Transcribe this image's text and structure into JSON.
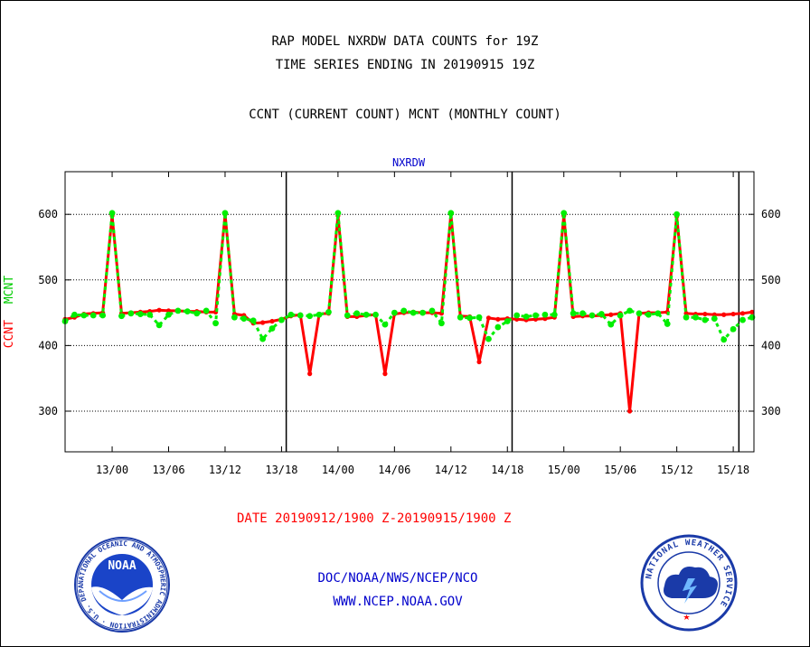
{
  "header": {
    "title_line1": "RAP MODEL NXRDW DATA COUNTS for 19Z",
    "title_line2": "TIME SERIES ENDING IN 20190915 19Z",
    "subtitle": "CCNT (CURRENT COUNT) MCNT (MONTHLY COUNT)"
  },
  "footer": {
    "date_range": "DATE 20190912/1900 Z-20190915/1900 Z",
    "org": "DOC/NOAA/NWS/NCEP/NCO",
    "url": "WWW.NCEP.NOAA.GOV"
  },
  "logos": {
    "left": {
      "icon": "noaa-logo",
      "label": "NOAA",
      "ring_text": "NATIONAL OCEANIC AND ATMOSPHERIC ADMINISTRATION · U.S. DEPARTMENT OF COMMERCE"
    },
    "right": {
      "icon": "nws-logo",
      "ring_text": "NATIONAL WEATHER SERVICE"
    }
  },
  "chart_data": {
    "type": "line",
    "title": "NXRDW",
    "ylabel_left": "CCNT",
    "ylabel_right": "MCNT",
    "ylim": [
      238,
      665
    ],
    "yticks": [
      300,
      400,
      500,
      600
    ],
    "xlim": [
      -5.0,
      68.2
    ],
    "x_unit": "hours since 20190912/1900 Z",
    "xticks": [
      {
        "x": 0,
        "label": "13/00"
      },
      {
        "x": 6,
        "label": "13/06"
      },
      {
        "x": 12,
        "label": "13/12"
      },
      {
        "x": 18,
        "label": "13/18"
      },
      {
        "x": 24,
        "label": "14/00"
      },
      {
        "x": 30,
        "label": "14/06"
      },
      {
        "x": 36,
        "label": "14/12"
      },
      {
        "x": 42,
        "label": "14/18"
      },
      {
        "x": 48,
        "label": "15/00"
      },
      {
        "x": 54,
        "label": "15/06"
      },
      {
        "x": 60,
        "label": "15/12"
      },
      {
        "x": 66,
        "label": "15/18"
      }
    ],
    "vlines": [
      18.5,
      42.5,
      66.6
    ],
    "grid": "horizontal dotted",
    "colors": {
      "ccnt": "#ff0000",
      "mcnt": "#00ee00",
      "title": "#0000cc"
    },
    "series": [
      {
        "name": "CCNT",
        "color": "#ff0000",
        "x": [
          -5,
          -4,
          -3,
          -2,
          -1,
          0,
          1,
          2,
          3,
          4,
          5,
          6,
          7,
          8,
          9,
          10,
          11,
          12,
          13,
          14,
          15,
          16,
          17,
          18,
          19,
          20,
          21,
          22,
          23,
          24,
          25,
          26,
          27,
          28,
          29,
          30,
          31,
          32,
          33,
          34,
          35,
          36,
          37,
          38,
          39,
          40,
          41,
          42,
          43,
          44,
          45,
          46,
          47,
          48,
          49,
          50,
          51,
          52,
          53,
          54,
          55,
          56,
          57,
          58,
          59,
          60,
          61,
          62,
          63,
          64,
          65,
          66,
          67,
          68
        ],
        "values": [
          440,
          443,
          448,
          449,
          450,
          598,
          449,
          450,
          451,
          452,
          454,
          453,
          453,
          452,
          452,
          451,
          451,
          600,
          448,
          446,
          434,
          435,
          437,
          440,
          445,
          447,
          357,
          448,
          449,
          598,
          444,
          444,
          446,
          447,
          357,
          448,
          450,
          451,
          450,
          450,
          449,
          600,
          445,
          444,
          375,
          442,
          440,
          441,
          440,
          439,
          440,
          441,
          443,
          598,
          444,
          445,
          445,
          446,
          447,
          449,
          300,
          449,
          450,
          450,
          451,
          597,
          449,
          448,
          448,
          447,
          447,
          448,
          449,
          451
        ]
      },
      {
        "name": "MCNT",
        "color": "#00ee00",
        "x": [
          -5,
          -4,
          -3,
          -2,
          -1,
          0,
          1,
          2,
          3,
          4,
          5,
          6,
          7,
          8,
          9,
          10,
          11,
          12,
          13,
          14,
          15,
          16,
          17,
          18,
          19,
          20,
          21,
          22,
          23,
          24,
          25,
          26,
          27,
          28,
          29,
          30,
          31,
          32,
          33,
          34,
          35,
          36,
          37,
          38,
          39,
          40,
          41,
          42,
          43,
          44,
          45,
          46,
          47,
          48,
          49,
          50,
          51,
          52,
          53,
          54,
          55,
          56,
          57,
          58,
          59,
          60,
          61,
          62,
          63,
          64,
          65,
          66,
          67,
          68
        ],
        "values": [
          437,
          447,
          446,
          446,
          446,
          602,
          445,
          449,
          448,
          447,
          431,
          447,
          453,
          452,
          449,
          453,
          434,
          602,
          443,
          441,
          438,
          410,
          426,
          439,
          447,
          446,
          445,
          447,
          451,
          602,
          446,
          449,
          447,
          447,
          432,
          450,
          453,
          450,
          450,
          453,
          434,
          602,
          443,
          442,
          443,
          410,
          428,
          437,
          446,
          444,
          446,
          447,
          447,
          602,
          449,
          449,
          446,
          448,
          432,
          446,
          453,
          449,
          447,
          449,
          433,
          600,
          443,
          443,
          439,
          441,
          409,
          425,
          439,
          443
        ]
      }
    ]
  }
}
